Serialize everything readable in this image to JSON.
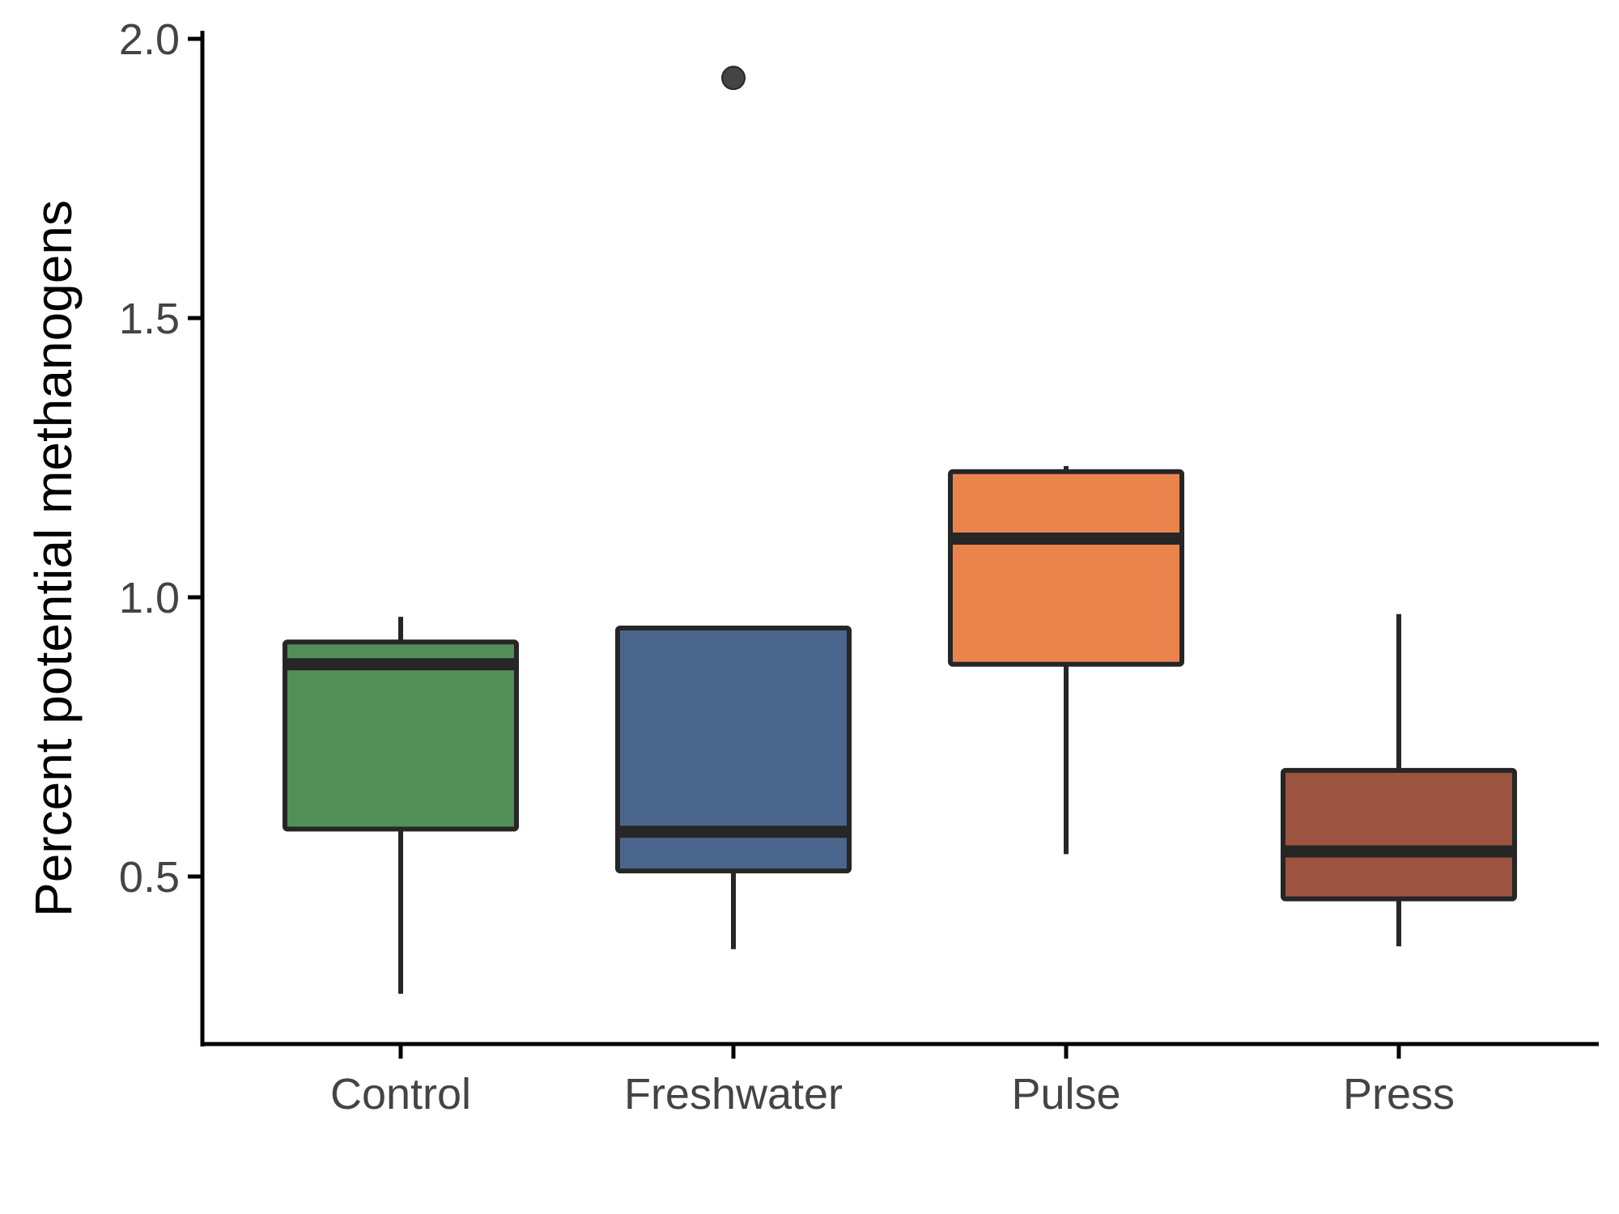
{
  "chart_data": {
    "type": "boxplot",
    "title": "",
    "xlabel": "",
    "ylabel": "Percent potential methanogens",
    "ylim": [
      0.21,
      2.02
    ],
    "yticks": [
      0.5,
      1.0,
      1.5,
      2.0
    ],
    "ytick_labels": [
      "0.5",
      "1.0",
      "1.5",
      "2.0"
    ],
    "grid": false,
    "legend": "none",
    "categories": [
      "Control",
      "Freshwater",
      "Pulse",
      "Press"
    ],
    "boxes": [
      {
        "category": "Control",
        "whisker_low": 0.29,
        "q1": 0.585,
        "median": 0.88,
        "q3": 0.92,
        "whisker_high": 0.965,
        "outliers": [],
        "color": "#528F58"
      },
      {
        "category": "Freshwater",
        "whisker_low": 0.37,
        "q1": 0.51,
        "median": 0.58,
        "q3": 0.945,
        "whisker_high": 0.945,
        "outliers": [
          1.93
        ],
        "color": "#4B668D"
      },
      {
        "category": "Pulse",
        "whisker_low": 0.54,
        "q1": 0.88,
        "median": 1.105,
        "q3": 1.225,
        "whisker_high": 1.235,
        "outliers": [],
        "color": "#EB844C"
      },
      {
        "category": "Press",
        "whisker_low": 0.375,
        "q1": 0.46,
        "median": 0.545,
        "q3": 0.69,
        "whisker_high": 0.97,
        "outliers": [],
        "color": "#9C5440"
      }
    ]
  }
}
